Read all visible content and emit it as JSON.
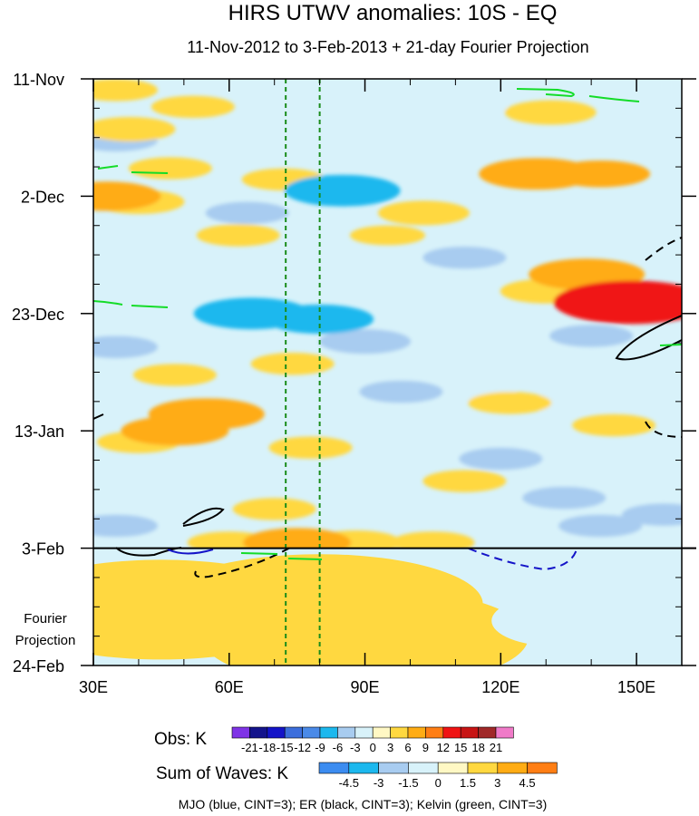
{
  "chart_data": {
    "type": "heatmap",
    "title": "HIRS UTWV anomalies: 10S - EQ",
    "subtitle": "11-Nov-2012 to 3-Feb-2013 + 21-day Fourier Projection",
    "x_axis": {
      "unit": "longitude (degrees East)",
      "range": [
        30,
        160
      ],
      "ticks": [
        30,
        60,
        90,
        120,
        150
      ],
      "tick_labels": [
        "30E",
        "60E",
        "90E",
        "120E",
        "150E"
      ],
      "minor_ticks": [
        40,
        50,
        70,
        80,
        100,
        110,
        130,
        140
      ]
    },
    "y_axis": {
      "unit": "days since 11-Nov-2012 (time increases downward)",
      "range": [
        0,
        105
      ],
      "ticks": [
        0,
        21,
        42,
        63,
        84,
        105
      ],
      "tick_labels": [
        "11-Nov",
        "2-Dec",
        "23-Dec",
        "13-Jan",
        "3-Feb",
        "24-Feb"
      ]
    },
    "projection_label": [
      "Fourier",
      "Projection"
    ],
    "observation_end_day": 84,
    "reference_longitudes": [
      72.5,
      80
    ],
    "colorbars": [
      {
        "title": "Obs: K",
        "levels": [
          "-21",
          "-18",
          "-15",
          "-12",
          "-9",
          "-6",
          "-3",
          "0",
          "3",
          "6",
          "9",
          "12",
          "15",
          "18",
          "21"
        ],
        "colors": [
          "#7f33e6",
          "#14148c",
          "#1414c8",
          "#3c6edc",
          "#4a8ae8",
          "#1cb8ee",
          "#a8ccf0",
          "#d8f2fa",
          "#fff8c4",
          "#ffd840",
          "#ffac14",
          "#ff7e14",
          "#f01414",
          "#c81414",
          "#a02828",
          "#f07ac8"
        ]
      },
      {
        "title": "Sum of Waves: K",
        "levels": [
          "-4.5",
          "-3",
          "-1.5",
          "0",
          "1.5",
          "3",
          "4.5"
        ],
        "colors": [
          "#3c8cf0",
          "#1cb8ee",
          "#a8ccf0",
          "#d8f2fa",
          "#fff8c4",
          "#ffd840",
          "#ffac14",
          "#ff7e14"
        ]
      }
    ],
    "field_samples": [
      {
        "lon": 35,
        "day": 2,
        "value": 4
      },
      {
        "lon": 52,
        "day": 5,
        "value": 4
      },
      {
        "lon": 38,
        "day": 9,
        "value": 5
      },
      {
        "lon": 47,
        "day": 16,
        "value": 4
      },
      {
        "lon": 33,
        "day": 21,
        "value": 7
      },
      {
        "lon": 40,
        "day": 22,
        "value": 5
      },
      {
        "lon": 72,
        "day": 18,
        "value": 4
      },
      {
        "lon": 103,
        "day": 24,
        "value": 5
      },
      {
        "lon": 62,
        "day": 28,
        "value": 4
      },
      {
        "lon": 95,
        "day": 28,
        "value": 3
      },
      {
        "lon": 131,
        "day": 6,
        "value": 5
      },
      {
        "lon": 128,
        "day": 17,
        "value": 8
      },
      {
        "lon": 142,
        "day": 17,
        "value": 6
      },
      {
        "lon": 139,
        "day": 35,
        "value": 8
      },
      {
        "lon": 149,
        "day": 40,
        "value": 13
      },
      {
        "lon": 130,
        "day": 38,
        "value": 5
      },
      {
        "lon": 55,
        "day": 60,
        "value": 8
      },
      {
        "lon": 48,
        "day": 63,
        "value": 7
      },
      {
        "lon": 40,
        "day": 65,
        "value": 4
      },
      {
        "lon": 78,
        "day": 66,
        "value": 4
      },
      {
        "lon": 122,
        "day": 58,
        "value": 4
      },
      {
        "lon": 145,
        "day": 62,
        "value": 4
      },
      {
        "lon": 70,
        "day": 77,
        "value": 4
      },
      {
        "lon": 112,
        "day": 72,
        "value": 4
      },
      {
        "lon": 75,
        "day": 83,
        "value": 7
      },
      {
        "lon": 60,
        "day": 83,
        "value": 4
      },
      {
        "lon": 88,
        "day": 83,
        "value": 5
      },
      {
        "lon": 105,
        "day": 83,
        "value": 4
      },
      {
        "lon": 74,
        "day": 51,
        "value": 4
      },
      {
        "lon": 48,
        "day": 53,
        "value": 4
      },
      {
        "lon": 35,
        "day": 11,
        "value": -4
      },
      {
        "lon": 85,
        "day": 20,
        "value": -8
      },
      {
        "lon": 64,
        "day": 24,
        "value": -4
      },
      {
        "lon": 65,
        "day": 42,
        "value": -8
      },
      {
        "lon": 80,
        "day": 43,
        "value": -7
      },
      {
        "lon": 90,
        "day": 47,
        "value": -5
      },
      {
        "lon": 35,
        "day": 48,
        "value": -4
      },
      {
        "lon": 98,
        "day": 56,
        "value": -4
      },
      {
        "lon": 115,
        "day": 56,
        "value": -3
      },
      {
        "lon": 133,
        "day": 58,
        "value": -3
      },
      {
        "lon": 120,
        "day": 68,
        "value": -4
      },
      {
        "lon": 134,
        "day": 75,
        "value": -4
      },
      {
        "lon": 35,
        "day": 80,
        "value": -4
      },
      {
        "lon": 142,
        "day": 80,
        "value": -4
      },
      {
        "lon": 156,
        "day": 78,
        "value": -4
      },
      {
        "lon": 40,
        "day": 86,
        "value": -3
      },
      {
        "lon": 112,
        "day": 32,
        "value": -4
      },
      {
        "lon": 140,
        "day": 46,
        "value": -4
      },
      {
        "lon": 113,
        "day": 5,
        "value": -3
      },
      {
        "lon": 76,
        "day": 9,
        "value": -3
      },
      {
        "lon": 100,
        "day": 38,
        "value": -3
      }
    ],
    "projection_samples": [
      {
        "lon": 45,
        "day": 95,
        "value": 1.8
      },
      {
        "lon": 80,
        "day": 94,
        "value": 1.8
      },
      {
        "lon": 90,
        "day": 100,
        "value": 1.6
      },
      {
        "lon": 132,
        "day": 97,
        "value": -1.0
      }
    ],
    "wave_legend": "MJO (blue, CINT=3); ER (black, CINT=3); Kelvin (green, CINT=3)"
  }
}
